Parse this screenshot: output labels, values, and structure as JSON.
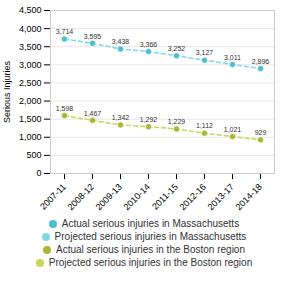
{
  "chart_data": {
    "type": "line",
    "categories": [
      "2007-11",
      "2008-12",
      "2009-13",
      "2010-14",
      "2011-15",
      "2012-16",
      "2013-17",
      "2014-18"
    ],
    "ylabel": "Serious Injuries",
    "ylim": [
      0,
      4500
    ],
    "yticks": [
      0,
      500,
      {
        "value": 1000,
        "label": "1,000"
      },
      {
        "value": 1500,
        "label": "1,500"
      },
      {
        "value": 2000,
        "label": "2,000"
      },
      {
        "value": 2500,
        "label": "2,500"
      },
      {
        "value": 3000,
        "label": "3,000"
      },
      {
        "value": 3500,
        "label": "3,500"
      },
      {
        "value": 4000,
        "label": "4,000"
      },
      {
        "value": 4500,
        "label": "4,500"
      }
    ],
    "grid": true,
    "legend": "bottom",
    "series": [
      {
        "name": "Actual serious injuries in Massachusetts",
        "type": "scatter",
        "marker": "circle",
        "color": "#4BBFCF",
        "values": [
          3714,
          3595,
          3438,
          3366,
          3252,
          3127,
          3011,
          2896
        ],
        "data_labels": true,
        "value_labels": [
          "3,714",
          "3,595",
          "3,438",
          "3,366",
          "3,252",
          "3,127",
          "3,011",
          "2,896"
        ]
      },
      {
        "name": "Projected serious injuries in Massachusetts",
        "type": "line",
        "line_style": "dashed",
        "color": "#7ED8E8",
        "values": [
          3714,
          3595,
          3438,
          3366,
          3252,
          3127,
          3011,
          2896
        ]
      },
      {
        "name": "Actual serious injuries in the Boston region",
        "type": "scatter",
        "marker": "circle",
        "color": "#A8B832",
        "values": [
          1598,
          1467,
          1342,
          1292,
          1229,
          1112,
          1021,
          929
        ],
        "data_labels": true,
        "value_labels": [
          "1,598",
          "1,467",
          "1,342",
          "1,292",
          "1,229",
          "1,112",
          "1,021",
          "929"
        ]
      },
      {
        "name": "Projected serious injuries in the Boston region",
        "type": "line",
        "line_style": "dashed",
        "color": "#C8D850",
        "values": [
          1598,
          1467,
          1342,
          1292,
          1229,
          1112,
          1021,
          929
        ]
      }
    ]
  }
}
